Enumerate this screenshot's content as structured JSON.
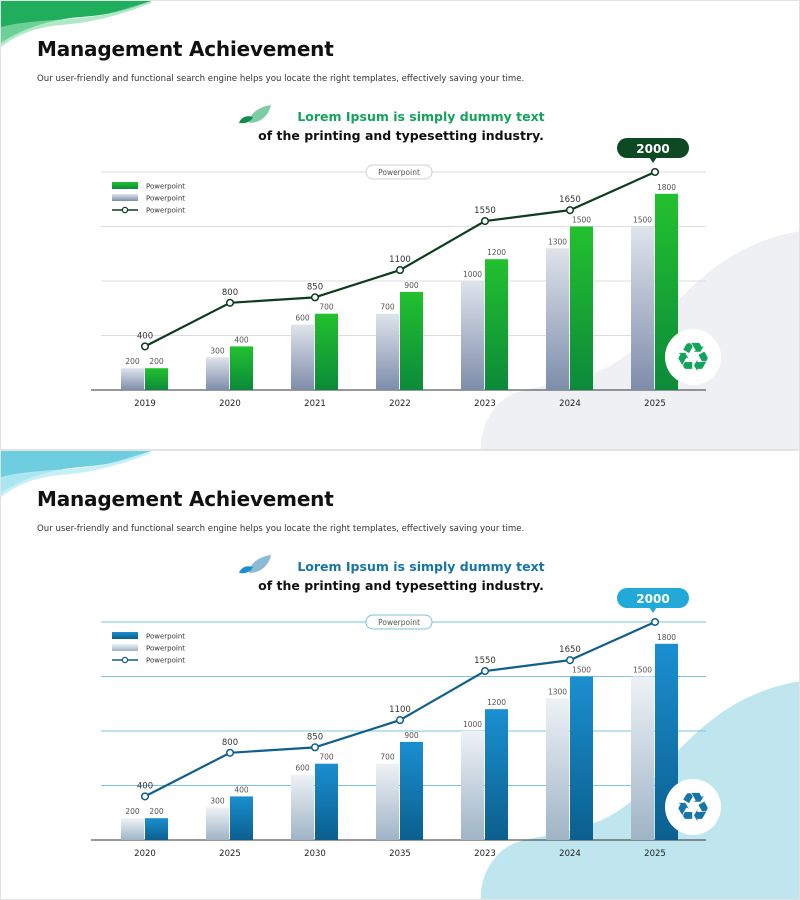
{
  "slides": [
    {
      "theme": "green",
      "title": "Management Achievement",
      "subtitle": "Our user-friendly and functional search engine helps you locate the right templates, effectively saving your time.",
      "headline_line1": "Lorem Ipsum is simply dummy text",
      "headline_line2": "of the printing and typesetting industry.",
      "icon": "recycle-icon",
      "colors": {
        "accent": "#14a35c",
        "bar_dark": "#0c8a3a",
        "bar_light": "#22c12e",
        "gray_top": "#dfe4ec",
        "gray_bottom": "#7d8daa",
        "line": "#0d3b1e",
        "badge": "#0d4a24",
        "blob": "#eef0f4",
        "corner": "#2fbf6b"
      },
      "chart_data": {
        "type": "bar",
        "title": "Powerpoint",
        "categories": [
          "2019",
          "2020",
          "2021",
          "2022",
          "2023",
          "2024",
          "2025"
        ],
        "series": [
          {
            "name": "Powerpoint",
            "kind": "bar",
            "values": [
              200,
              300,
              600,
              700,
              1000,
              1300,
              1500
            ]
          },
          {
            "name": "Powerpoint",
            "kind": "bar",
            "values": [
              200,
              400,
              700,
              900,
              1200,
              1500,
              1800
            ]
          },
          {
            "name": "Powerpoint",
            "kind": "line",
            "values": [
              400,
              800,
              850,
              1100,
              1550,
              1650,
              2000
            ]
          }
        ],
        "highlight": "2000",
        "legend": "top-left",
        "grid": true
      }
    },
    {
      "theme": "blue",
      "title": "Management Achievement",
      "subtitle": "Our user-friendly and functional search engine helps you locate the right templates, effectively saving your time.",
      "headline_line1": "Lorem Ipsum is simply dummy text",
      "headline_line2": "of the printing and typesetting industry.",
      "icon": "recycle-icon",
      "colors": {
        "accent": "#1776a8",
        "bar_dark": "#0b5f8e",
        "bar_light": "#1a8fd0",
        "gray_top": "#eef2f6",
        "gray_bottom": "#9fb4c6",
        "line": "#0f5f8c",
        "badge": "#22a9d8",
        "blob": "#bfe6ee",
        "corner": "#5cc3dc"
      },
      "chart_data": {
        "type": "bar",
        "title": "Powerpoint",
        "categories": [
          "2020",
          "2025",
          "2030",
          "2035",
          "2023",
          "2024",
          "2025"
        ],
        "series": [
          {
            "name": "Powerpoint",
            "kind": "bar",
            "values": [
              200,
              300,
              600,
              700,
              1000,
              1300,
              1500
            ]
          },
          {
            "name": "Powerpoint",
            "kind": "bar",
            "values": [
              200,
              400,
              700,
              900,
              1200,
              1500,
              1800
            ]
          },
          {
            "name": "Powerpoint",
            "kind": "line",
            "values": [
              400,
              800,
              850,
              1100,
              1550,
              1650,
              2000
            ]
          }
        ],
        "highlight": "2000",
        "legend": "top-left",
        "grid": true
      }
    }
  ]
}
